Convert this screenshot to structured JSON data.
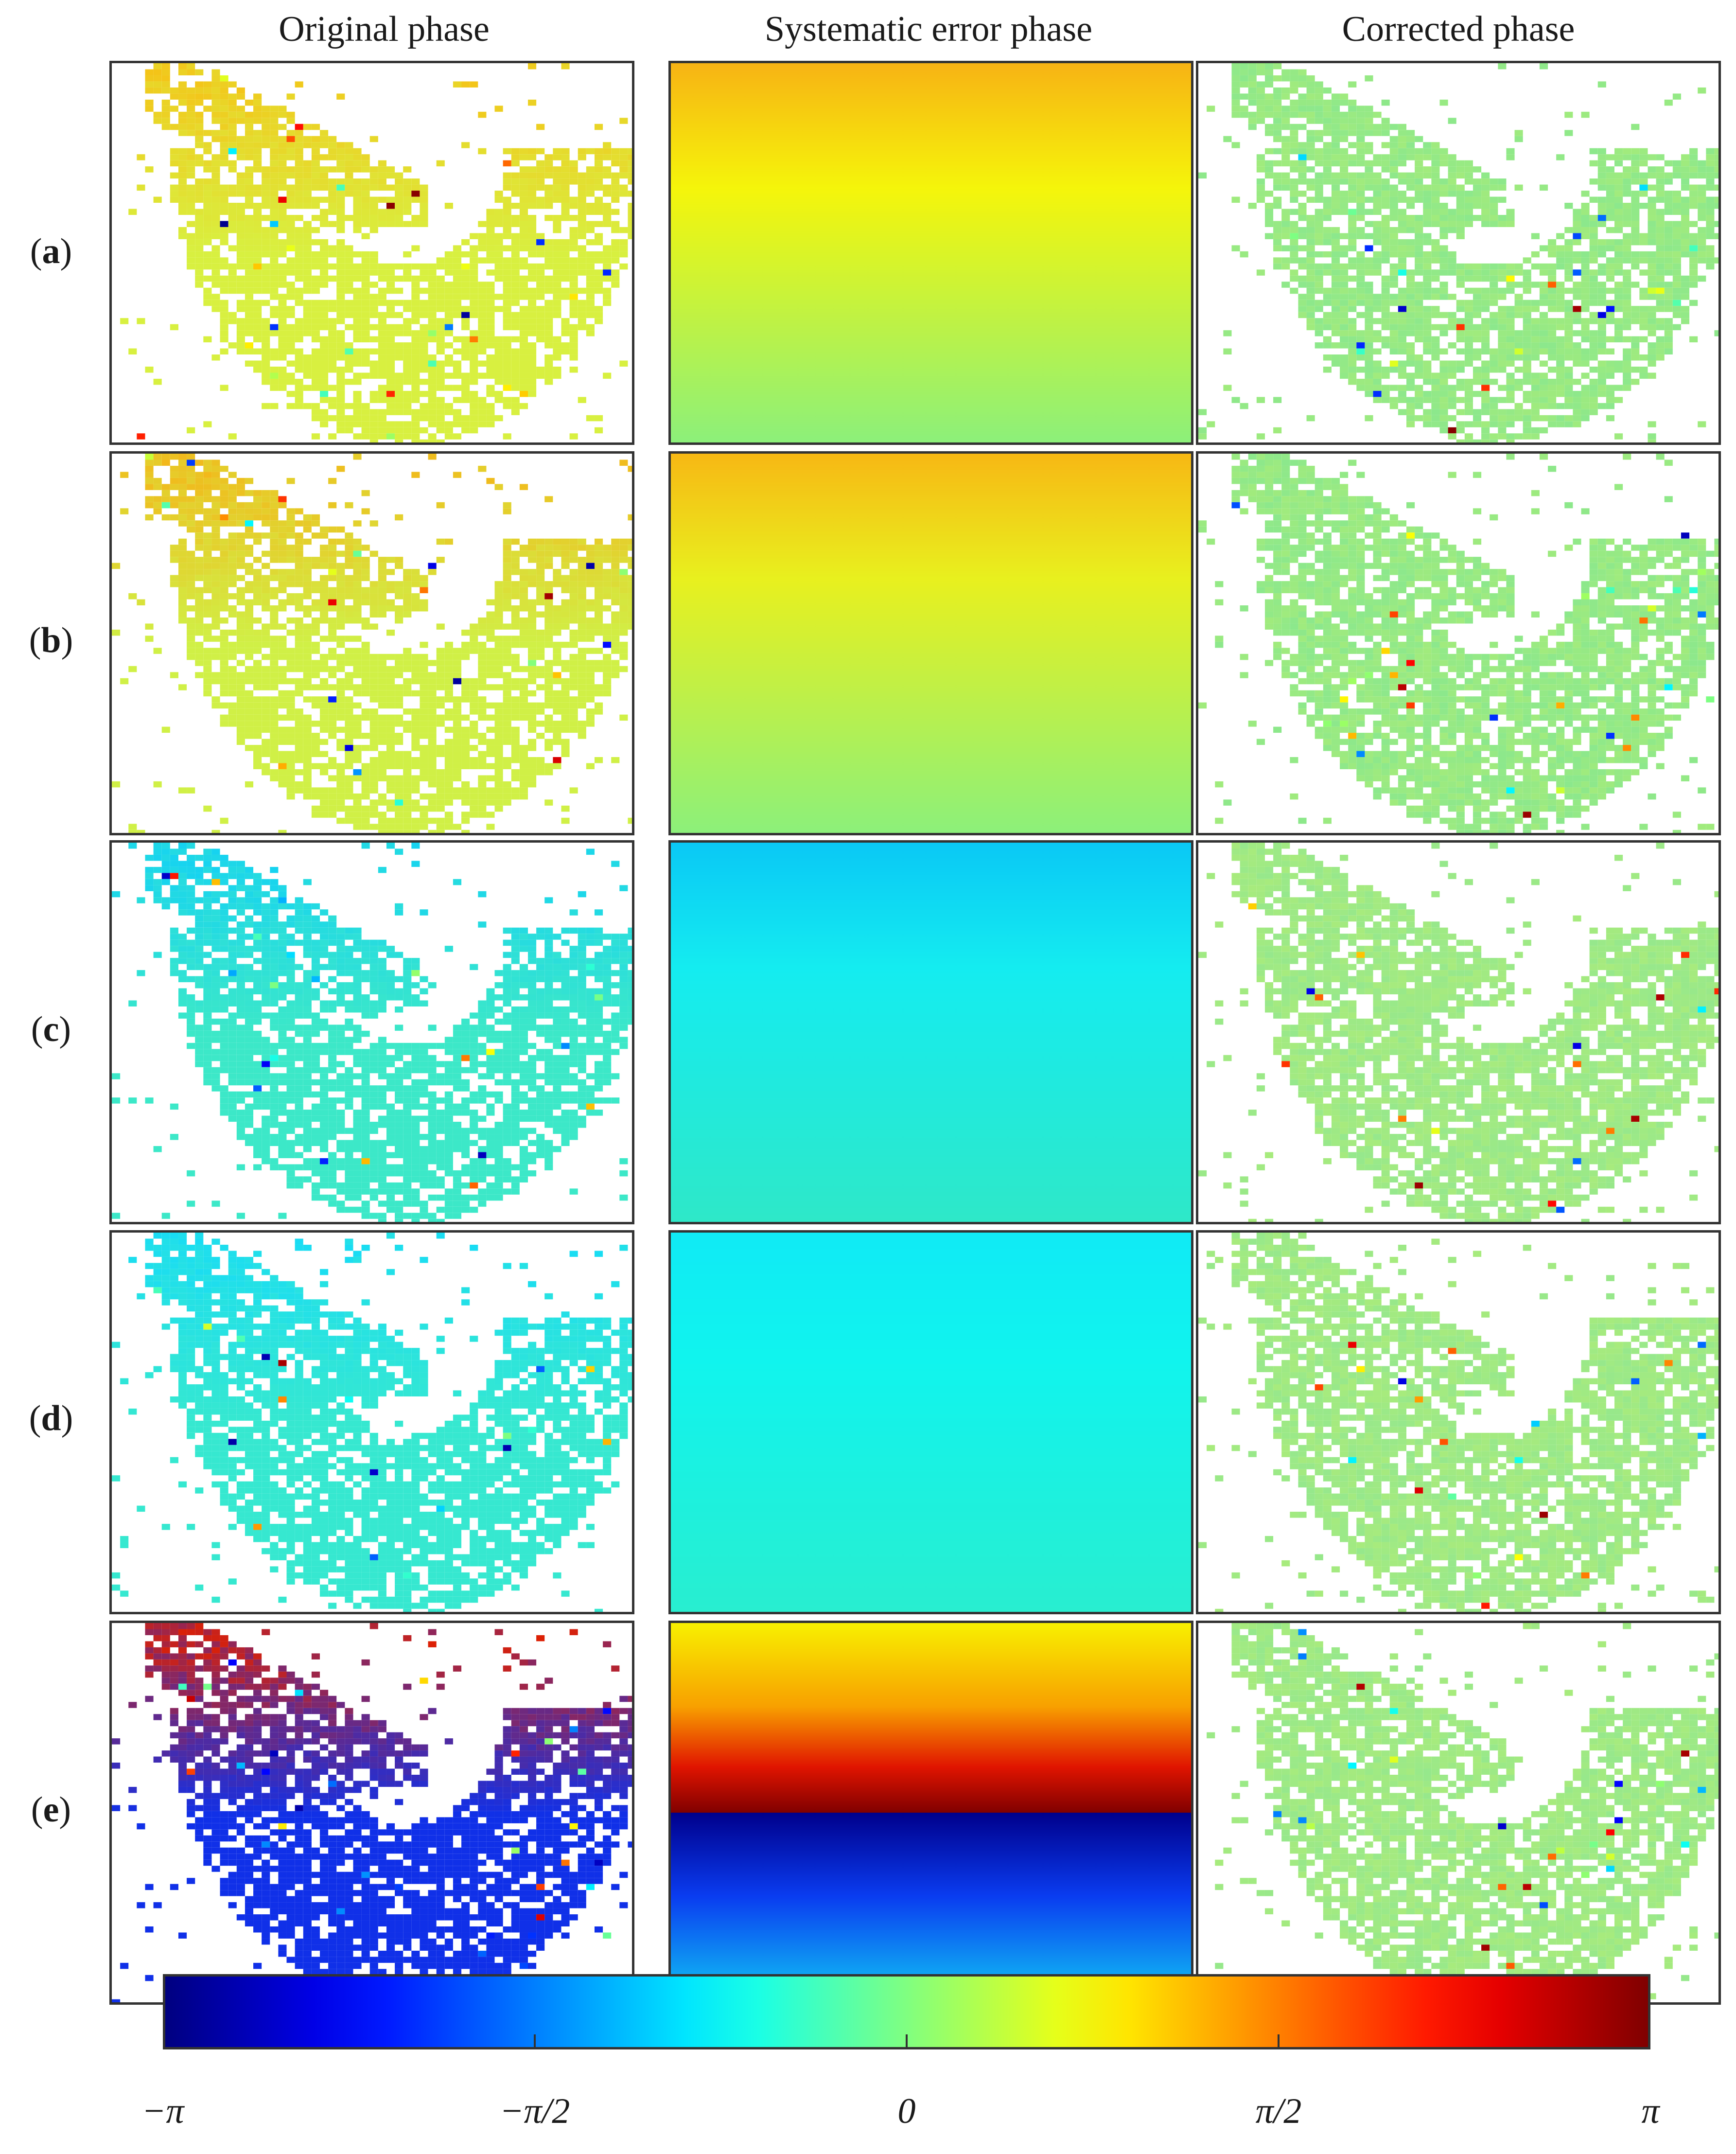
{
  "figure": {
    "column_titles": [
      "Original phase",
      "Systematic error phase",
      "Corrected phase"
    ],
    "rows": [
      {
        "label": "a",
        "error_top_color": "#f7b314",
        "error_mid_color": "#f5f50a",
        "error_bottom_color": "#8cf07a",
        "original_tint": "#d8f040",
        "original_upper_tint": "#f4c418",
        "corrected_tint": "#8ce88c"
      },
      {
        "label": "b",
        "error_top_color": "#f7b814",
        "error_mid_color": "#e8f01e",
        "error_bottom_color": "#8cf07a",
        "original_tint": "#d0f046",
        "original_upper_tint": "#f2b81a",
        "corrected_tint": "#8ce88c"
      },
      {
        "label": "c",
        "error_top_color": "#0ac8f5",
        "error_mid_color": "#14ecf0",
        "error_bottom_color": "#2ee8c8",
        "original_tint": "#3ce8c8",
        "original_upper_tint": "#14d2f2",
        "corrected_tint": "#96e88c"
      },
      {
        "label": "d",
        "error_top_color": "#10eaf5",
        "error_mid_color": "#10f4ee",
        "error_bottom_color": "#28eed0",
        "original_tint": "#36e8d0",
        "original_upper_tint": "#18dcf4",
        "corrected_tint": "#96e88c"
      },
      {
        "label": "e",
        "error_top_color": "#f8f000",
        "error_mid_color": "#e01400",
        "error_bottom_color": "#10c8f4",
        "original_tint": "#1030e8",
        "original_upper_tint": "#e02000",
        "corrected_tint": "#96e88c"
      }
    ],
    "colorbar": {
      "colormap": "jet",
      "ticks": [
        "−π",
        "−π/2",
        "0",
        "π/2",
        "π"
      ],
      "tick_fractions": [
        0,
        0.25,
        0.5,
        0.75,
        1
      ]
    }
  }
}
